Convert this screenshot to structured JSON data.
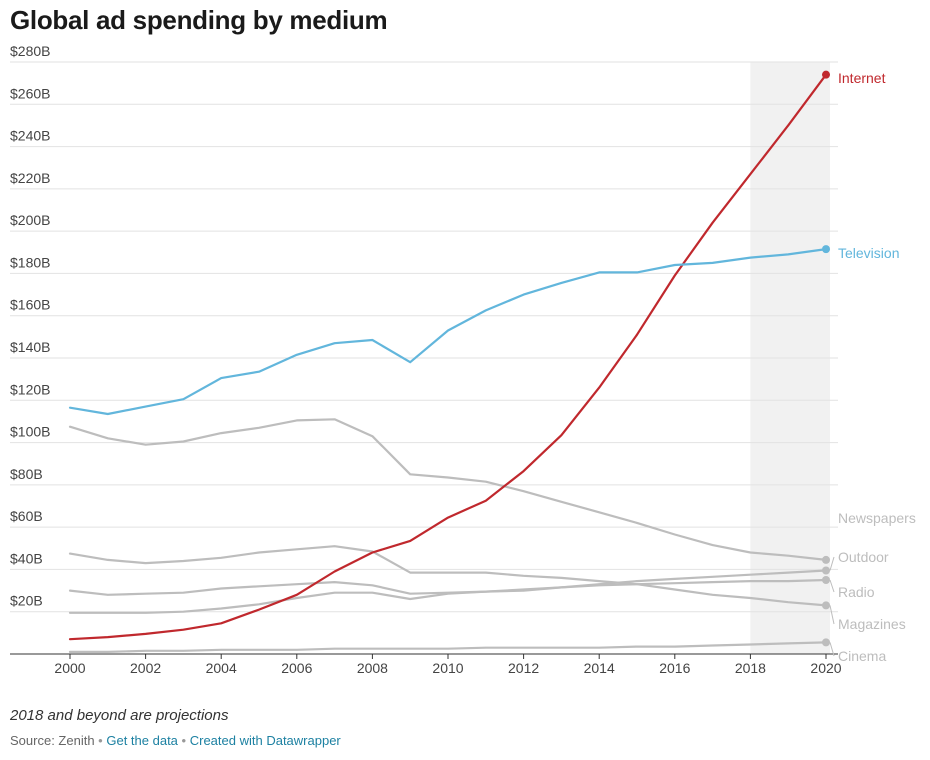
{
  "title": "Global ad spending by medium",
  "note": "2018 and beyond are projections",
  "footer": {
    "source": "Source: Zenith",
    "get_data": "Get the data",
    "created_with": "Created with Datawrapper",
    "separator": "•"
  },
  "colors": {
    "internet": "#c0282d",
    "television": "#62b6dc",
    "other": "#bdbdbd",
    "grid": "#e2e2e2",
    "projection_band": "#f1f1f1"
  },
  "chart_data": {
    "type": "line",
    "title": "Global ad spending by medium",
    "xlabel": "",
    "ylabel": "",
    "x": [
      2000,
      2001,
      2002,
      2003,
      2004,
      2005,
      2006,
      2007,
      2008,
      2009,
      2010,
      2011,
      2012,
      2013,
      2014,
      2015,
      2016,
      2017,
      2018,
      2019,
      2020
    ],
    "xlim": [
      2000,
      2020
    ],
    "ylim": [
      0,
      280
    ],
    "x_ticks": [
      2000,
      2002,
      2004,
      2006,
      2008,
      2010,
      2012,
      2014,
      2016,
      2018,
      2020
    ],
    "y_ticks": [
      20,
      40,
      60,
      80,
      100,
      120,
      140,
      160,
      180,
      200,
      220,
      240,
      260,
      280
    ],
    "y_tick_labels": [
      "$20B",
      "$40B",
      "$60B",
      "$80B",
      "$100B",
      "$120B",
      "$140B",
      "$160B",
      "$180B",
      "$200B",
      "$220B",
      "$240B",
      "$260B",
      "$280B"
    ],
    "grid": true,
    "projection_range": [
      2018,
      2020
    ],
    "series": [
      {
        "name": "Internet",
        "color": "#c0282d",
        "values": [
          7,
          8,
          9.5,
          11.5,
          14.5,
          21,
          28,
          39,
          48,
          53.5,
          64.5,
          72.5,
          86.5,
          103.5,
          126,
          151,
          179,
          204,
          227,
          250,
          274
        ]
      },
      {
        "name": "Television",
        "color": "#62b6dc",
        "values": [
          116.5,
          113.5,
          117,
          120.5,
          130.5,
          133.5,
          141.5,
          147,
          148.5,
          138,
          153,
          162.5,
          170,
          175.5,
          180.5,
          180.5,
          184,
          185,
          187.5,
          189,
          191.5
        ]
      },
      {
        "name": "Newspapers",
        "color": "#bdbdbd",
        "values": [
          107.5,
          102,
          99,
          100.5,
          104.5,
          107,
          110.5,
          111,
          103,
          85,
          83.5,
          81.5,
          77,
          72,
          67,
          62,
          56.5,
          51.5,
          48,
          46.5,
          44.5
        ]
      },
      {
        "name": "Outdoor",
        "color": "#bdbdbd",
        "values": [
          19.5,
          19.5,
          19.5,
          20,
          21.5,
          23.5,
          26.5,
          29,
          29,
          26,
          28.5,
          29.5,
          30,
          31.5,
          33,
          34.5,
          35.5,
          36.5,
          37.5,
          38.5,
          39.5
        ]
      },
      {
        "name": "Radio",
        "color": "#bdbdbd",
        "values": [
          30,
          28,
          28.5,
          29,
          31,
          32,
          33,
          34,
          32.5,
          28.5,
          29,
          29.5,
          30.5,
          31.5,
          32.5,
          33,
          33.5,
          34,
          34.5,
          34.5,
          35
        ]
      },
      {
        "name": "Magazines",
        "color": "#bdbdbd",
        "values": [
          47.5,
          44.5,
          43,
          44,
          45.5,
          48,
          49.5,
          51,
          48.5,
          38.5,
          38.5,
          38.5,
          37,
          36,
          34.5,
          33,
          30.5,
          28,
          26.5,
          24.5,
          23
        ]
      },
      {
        "name": "Cinema",
        "color": "#bdbdbd",
        "values": [
          1,
          1,
          1.5,
          1.5,
          2,
          2,
          2,
          2.5,
          2.5,
          2.5,
          2.5,
          3,
          3,
          3,
          3,
          3.5,
          3.5,
          4,
          4.5,
          5,
          5.5
        ]
      }
    ]
  }
}
